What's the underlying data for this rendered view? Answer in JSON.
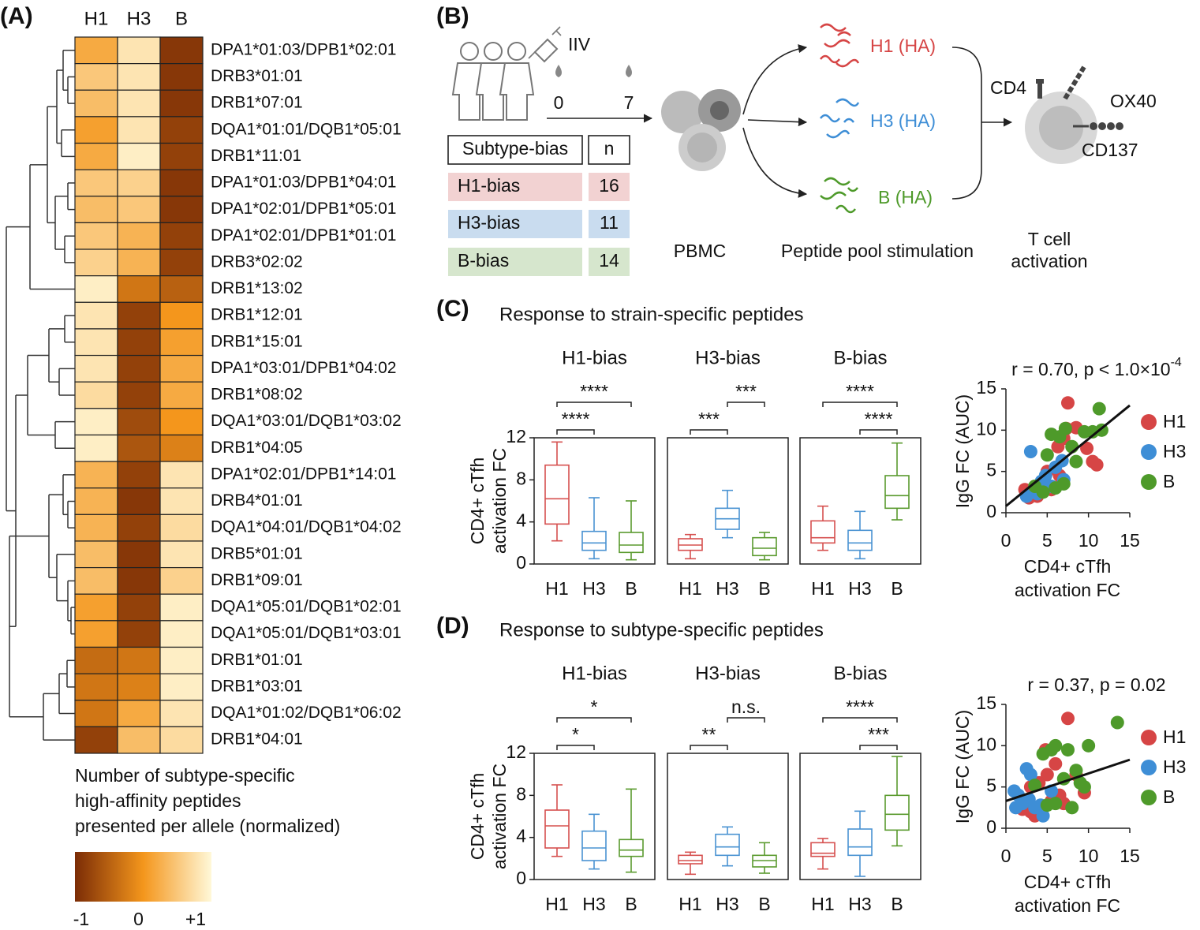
{
  "panel_labels": [
    "(A)",
    "(B)",
    "(C)",
    "(D)"
  ],
  "chart_data": [
    {
      "type": "heatmap",
      "x": [
        "H1",
        "H3",
        "B"
      ],
      "rows": [
        "DPA1*01:03/DPB1*02:01",
        "DRB3*01:01",
        "DRB1*07:01",
        "DQA1*01:01/DQB1*05:01",
        "DRB1*11:01",
        "DPA1*01:03/DPB1*04:01",
        "DPA1*02:01/DPB1*05:01",
        "DPA1*02:01/DPB1*01:01",
        "DRB3*02:02",
        "DRB1*13:02",
        "DRB1*12:01",
        "DRB1*15:01",
        "DPA1*03:01/DPB1*04:02",
        "DRB1*08:02",
        "DQA1*03:01/DQB1*03:02",
        "DRB1*04:05",
        "DPA1*02:01/DPB1*14:01",
        "DRB4*01:01",
        "DQA1*04:01/DQB1*04:02",
        "DRB5*01:01",
        "DRB1*09:01",
        "DQA1*05:01/DQB1*02:01",
        "DQA1*05:01/DQB1*03:01",
        "DRB1*01:01",
        "DRB1*03:01",
        "DQA1*01:02/DQB1*06:02",
        "DRB1*04:01"
      ],
      "values": [
        [
          0.2,
          0.8,
          -0.9
        ],
        [
          0.5,
          0.8,
          -0.9
        ],
        [
          0.4,
          0.8,
          -0.9
        ],
        [
          0.1,
          0.8,
          -0.8
        ],
        [
          0.2,
          0.9,
          -0.8
        ],
        [
          0.5,
          0.6,
          -0.9
        ],
        [
          0.4,
          0.5,
          -0.9
        ],
        [
          0.5,
          0.3,
          -0.8
        ],
        [
          0.6,
          0.3,
          -0.8
        ],
        [
          0.9,
          -0.3,
          -0.5
        ],
        [
          0.8,
          -0.8,
          0.0
        ],
        [
          0.8,
          -0.8,
          0.1
        ],
        [
          0.8,
          -0.8,
          0.2
        ],
        [
          0.7,
          -0.8,
          0.2
        ],
        [
          0.9,
          -0.7,
          0.0
        ],
        [
          0.9,
          -0.6,
          -0.2
        ],
        [
          0.3,
          -0.8,
          0.8
        ],
        [
          0.3,
          -0.9,
          0.8
        ],
        [
          0.3,
          -0.8,
          0.7
        ],
        [
          0.4,
          -0.9,
          0.8
        ],
        [
          0.4,
          -0.9,
          0.6
        ],
        [
          0.1,
          -0.8,
          0.9
        ],
        [
          0.1,
          -0.8,
          0.9
        ],
        [
          -0.4,
          -0.3,
          0.9
        ],
        [
          -0.3,
          -0.2,
          0.9
        ],
        [
          -0.3,
          0.2,
          0.8
        ],
        [
          -0.8,
          0.4,
          0.7
        ]
      ],
      "colorscale": [
        "#7b2c06",
        "#f4961c",
        "#fff8d8"
      ],
      "colorbar": {
        "title": [
          "Number of subtype-specific",
          "high-affinity peptides",
          "presented per allele (normalized)"
        ],
        "lim": [
          -1,
          1
        ],
        "ticks": [
          -1,
          0,
          {
            "value": 1,
            "label": "+1"
          }
        ]
      }
    },
    {
      "type": "box",
      "title": "Response to strain-specific peptides",
      "ylabel": [
        "CD4+ cTfh",
        "activation FC"
      ],
      "ylim": [
        0,
        12
      ],
      "yticks": [
        0,
        4,
        8,
        12
      ],
      "categories": [
        "H1",
        "H3",
        "B"
      ],
      "colors": [
        "#d6504f",
        "#4a93d2",
        "#5a9a2e"
      ],
      "panels": [
        {
          "title": "H1-bias",
          "boxes": [
            [
              2.2,
              3.8,
              6.2,
              9.4,
              11.6
            ],
            [
              0.5,
              1.3,
              2.0,
              3.1,
              6.3
            ],
            [
              0.4,
              1.1,
              1.8,
              3.0,
              6.0
            ]
          ],
          "brackets": [
            {
              "pair": [
                "H1",
                "H3"
              ],
              "label": "****"
            },
            {
              "pair": [
                "H1",
                "B"
              ],
              "label": "****"
            }
          ]
        },
        {
          "title": "H3-bias",
          "boxes": [
            [
              0.5,
              1.3,
              1.8,
              2.4,
              2.8
            ],
            [
              2.5,
              3.3,
              4.3,
              5.3,
              7.0
            ],
            [
              0.4,
              0.8,
              1.5,
              2.5,
              3.0
            ]
          ],
          "brackets": [
            {
              "pair": [
                "H1",
                "H3"
              ],
              "label": "***"
            },
            {
              "pair": [
                "H3",
                "B"
              ],
              "label": "***"
            }
          ]
        },
        {
          "title": "B-bias",
          "boxes": [
            [
              1.3,
              2.0,
              2.5,
              4.1,
              5.5
            ],
            [
              0.5,
              1.3,
              2.0,
              3.2,
              5.0
            ],
            [
              4.2,
              5.3,
              6.5,
              8.4,
              11.5
            ]
          ],
          "brackets": [
            {
              "pair": [
                "H3",
                "B"
              ],
              "label": "****"
            },
            {
              "pair": [
                "H1",
                "B"
              ],
              "label": "****"
            }
          ]
        }
      ]
    },
    {
      "type": "scatter",
      "title": "r = 0.70, p < 1.0×10",
      "title_superscript": "-4",
      "xlabel": [
        "CD4+ cTfh",
        "activation FC"
      ],
      "ylabel": "IgG FC (AUC)",
      "xlim": [
        0,
        15
      ],
      "ylim": [
        0,
        15
      ],
      "xticks": [
        0,
        5,
        10,
        15
      ],
      "yticks": [
        0,
        5,
        10,
        15
      ],
      "series": [
        {
          "name": "H1",
          "color": "#d64545",
          "x": [
            7.5,
            10.5,
            11,
            9.8,
            7.3,
            6.3,
            2.8,
            3.2,
            4.5,
            5.0,
            6.5,
            2.3,
            8.5,
            3.8,
            7.0,
            5.5
          ],
          "y": [
            13.3,
            6.2,
            5.8,
            7.8,
            10.2,
            8.0,
            1.8,
            2.5,
            3.5,
            5.0,
            4.5,
            2.8,
            10.3,
            2.0,
            9.0,
            2.8
          ]
        },
        {
          "name": "H3",
          "color": "#3e8ed6",
          "x": [
            3.0,
            2.5,
            3.5,
            4.3,
            4.8,
            5.5,
            6.0,
            6.8,
            3.8,
            4.0,
            7.0
          ],
          "y": [
            7.4,
            2.0,
            2.8,
            3.8,
            4.5,
            3.2,
            5.5,
            6.3,
            2.3,
            3.2,
            4.0
          ]
        },
        {
          "name": "B",
          "color": "#4e9a2a",
          "x": [
            5.5,
            6.5,
            7.2,
            8.0,
            9.5,
            10.5,
            11.3,
            11.6,
            5.0,
            4.5,
            6.0,
            7.0,
            8.5,
            3.5
          ],
          "y": [
            9.5,
            9.2,
            10.2,
            8.0,
            9.8,
            9.8,
            12.6,
            10.0,
            7.0,
            2.5,
            3.0,
            3.5,
            6.2,
            3.2
          ]
        }
      ],
      "fit_line": {
        "x": [
          0,
          15
        ],
        "y": [
          0.8,
          13
        ]
      }
    },
    {
      "type": "box",
      "title": "Response to subtype-specific peptides",
      "ylabel": [
        "CD4+ cTfh",
        "activation FC"
      ],
      "ylim": [
        0,
        12
      ],
      "yticks": [
        0,
        4,
        8,
        12
      ],
      "categories": [
        "H1",
        "H3",
        "B"
      ],
      "colors": [
        "#d6504f",
        "#4a93d2",
        "#5a9a2e"
      ],
      "panels": [
        {
          "title": "H1-bias",
          "boxes": [
            [
              2.2,
              3.0,
              5.1,
              6.6,
              9.0
            ],
            [
              1.0,
              1.8,
              3.0,
              4.6,
              6.2
            ],
            [
              0.7,
              2.2,
              2.8,
              3.8,
              8.6
            ]
          ],
          "brackets": [
            {
              "pair": [
                "H1",
                "H3"
              ],
              "label": "*"
            },
            {
              "pair": [
                "H1",
                "B"
              ],
              "label": "*"
            }
          ]
        },
        {
          "title": "H3-bias",
          "boxes": [
            [
              0.5,
              1.5,
              1.8,
              2.3,
              2.6
            ],
            [
              1.3,
              2.3,
              3.1,
              4.3,
              5.0
            ],
            [
              0.6,
              1.2,
              1.8,
              2.3,
              3.5
            ]
          ],
          "brackets": [
            {
              "pair": [
                "H1",
                "H3"
              ],
              "label": "**"
            },
            {
              "pair": [
                "H3",
                "B"
              ],
              "label": "n.s."
            }
          ]
        },
        {
          "title": "B-bias",
          "boxes": [
            [
              1.0,
              2.2,
              2.5,
              3.5,
              3.9
            ],
            [
              0.3,
              2.3,
              3.1,
              4.8,
              6.5
            ],
            [
              3.2,
              4.7,
              6.2,
              8.0,
              11.7
            ]
          ],
          "brackets": [
            {
              "pair": [
                "H3",
                "B"
              ],
              "label": "***"
            },
            {
              "pair": [
                "H1",
                "B"
              ],
              "label": "****"
            }
          ]
        }
      ]
    },
    {
      "type": "scatter",
      "title": "r = 0.37, p = 0.02",
      "xlabel": [
        "CD4+ cTfh",
        "activation FC"
      ],
      "ylabel": "IgG FC (AUC)",
      "xlim": [
        0,
        15
      ],
      "ylim": [
        0,
        15
      ],
      "xticks": [
        0,
        5,
        10,
        15
      ],
      "yticks": [
        0,
        5,
        10,
        15
      ],
      "series": [
        {
          "name": "H1",
          "color": "#d64545",
          "x": [
            7.5,
            4.8,
            6.0,
            5.0,
            6.5,
            7.0,
            3.0,
            3.5,
            2.5,
            4.0,
            8.5,
            5.5,
            2.0,
            9.5,
            4.5,
            3.0
          ],
          "y": [
            13.3,
            9.5,
            7.8,
            6.5,
            4.0,
            3.0,
            2.0,
            1.5,
            3.0,
            5.5,
            6.5,
            3.3,
            2.3,
            4.3,
            2.5,
            5.0
          ]
        },
        {
          "name": "H3",
          "color": "#3e8ed6",
          "x": [
            1.5,
            2.5,
            3.0,
            2.0,
            1.2,
            4.2,
            4.5,
            5.5,
            2.8,
            1.0,
            3.5
          ],
          "y": [
            4.0,
            7.2,
            6.5,
            3.0,
            2.5,
            2.8,
            1.5,
            4.5,
            3.5,
            4.5,
            2.5
          ]
        },
        {
          "name": "B",
          "color": "#4e9a2a",
          "x": [
            4.5,
            5.5,
            6.0,
            7.5,
            10.0,
            13.5,
            8.5,
            9.5,
            7.0,
            6.0,
            8.0,
            3.5,
            5.0,
            9.0
          ],
          "y": [
            9.0,
            9.5,
            10.0,
            9.5,
            10.0,
            12.8,
            7.0,
            5.0,
            6.0,
            3.0,
            2.5,
            5.2,
            2.8,
            5.5
          ]
        }
      ],
      "fit_line": {
        "x": [
          0,
          15
        ],
        "y": [
          3.3,
          8.3
        ]
      }
    }
  ],
  "diagram": {
    "vaccine": "IIV",
    "days": [
      0,
      7
    ],
    "table": {
      "header": [
        "Subtype-bias",
        "n"
      ],
      "rows": [
        [
          "H1-bias",
          16
        ],
        [
          "H3-bias",
          11
        ],
        [
          "B-bias",
          14
        ]
      ]
    },
    "cells": "PBMC",
    "peptides": [
      "H1 (HA)",
      "H3 (HA)",
      "B (HA)"
    ],
    "stimulation": "Peptide pool stimulation",
    "markers": [
      "CD4",
      "OX40",
      "CD137"
    ],
    "readout": [
      "T cell",
      "activation"
    ]
  }
}
